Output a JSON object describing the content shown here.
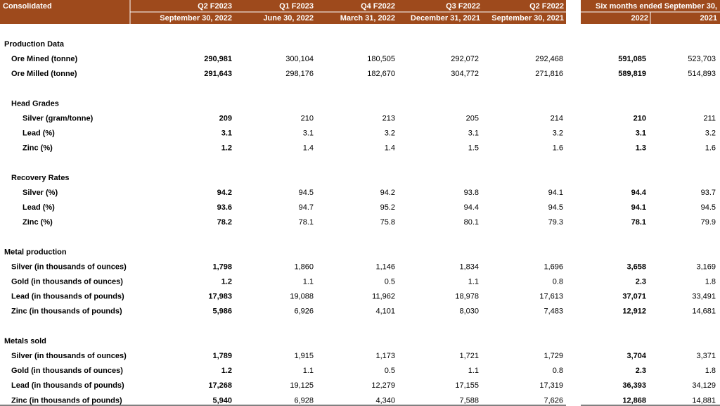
{
  "header": {
    "title": "Consolidated",
    "columns": [
      {
        "period": "Q2 F2023",
        "date": "September 30, 2022"
      },
      {
        "period": "Q1 F2023",
        "date": "June 30, 2022"
      },
      {
        "period": "Q4 F2022",
        "date": "March 31, 2022"
      },
      {
        "period": "Q3 F2022",
        "date": "December 31, 2021"
      },
      {
        "period": "Q2 F2022",
        "date": "September 30, 2021"
      }
    ],
    "six_months": {
      "title": "Six months ended September 30,",
      "years": [
        "2022",
        "2021"
      ]
    }
  },
  "sections": [
    {
      "title": "Production Data",
      "rows": [
        {
          "label": "Ore Mined (tonne)",
          "values": [
            "290,981",
            "300,104",
            "180,505",
            "292,072",
            "292,468",
            "591,085",
            "523,703"
          ]
        },
        {
          "label": "Ore Milled (tonne)",
          "values": [
            "291,643",
            "298,176",
            "182,670",
            "304,772",
            "271,816",
            "589,819",
            "514,893"
          ]
        }
      ]
    },
    {
      "title": "Head Grades",
      "rows": [
        {
          "label": "Silver (gram/tonne)",
          "values": [
            "209",
            "210",
            "213",
            "205",
            "214",
            "210",
            "211"
          ]
        },
        {
          "label": "Lead  (%)",
          "values": [
            "3.1",
            "3.1",
            "3.2",
            "3.1",
            "3.2",
            "3.1",
            "3.2"
          ]
        },
        {
          "label": "Zinc (%)",
          "values": [
            "1.2",
            "1.4",
            "1.4",
            "1.5",
            "1.6",
            "1.3",
            "1.6"
          ]
        }
      ]
    },
    {
      "title": "Recovery Rates",
      "rows": [
        {
          "label": "Silver  (%)",
          "values": [
            "94.2",
            "94.5",
            "94.2",
            "93.8",
            "94.1",
            "94.4",
            "93.7"
          ]
        },
        {
          "label": "Lead  (%)",
          "values": [
            "93.6",
            "94.7",
            "95.2",
            "94.4",
            "94.5",
            "94.1",
            "94.5"
          ]
        },
        {
          "label": "Zinc (%)",
          "values": [
            "78.2",
            "78.1",
            "75.8",
            "80.1",
            "79.3",
            "78.1",
            "79.9"
          ]
        }
      ]
    },
    {
      "title": "Metal production",
      "rows": [
        {
          "label": "Silver (in thousands of ounces)",
          "values": [
            "1,798",
            "1,860",
            "1,146",
            "1,834",
            "1,696",
            "3,658",
            "3,169"
          ]
        },
        {
          "label": "Gold (in thousands of ounces)",
          "values": [
            "1.2",
            "1.1",
            "0.5",
            "1.1",
            "0.8",
            "2.3",
            "1.8"
          ]
        },
        {
          "label": "Lead (in thousands of pounds)",
          "values": [
            "17,983",
            "19,088",
            "11,962",
            "18,978",
            "17,613",
            "37,071",
            "33,491"
          ]
        },
        {
          "label": "Zinc (in thousands of pounds)",
          "values": [
            "5,986",
            "6,926",
            "4,101",
            "8,030",
            "7,483",
            "12,912",
            "14,681"
          ]
        }
      ]
    },
    {
      "title": "Metals sold",
      "rows": [
        {
          "label": "Silver (in thousands of ounces)",
          "values": [
            "1,789",
            "1,915",
            "1,173",
            "1,721",
            "1,729",
            "3,704",
            "3,371"
          ]
        },
        {
          "label": "Gold  (in thousands of ounces)",
          "values": [
            "1.2",
            "1.1",
            "0.5",
            "1.1",
            "0.8",
            "2.3",
            "1.8"
          ]
        },
        {
          "label": "Lead (in thousands of pounds)",
          "values": [
            "17,268",
            "19,125",
            "12,279",
            "17,155",
            "17,319",
            "36,393",
            "34,129"
          ]
        },
        {
          "label": "Zinc  (in thousands of pounds)",
          "values": [
            "5,940",
            "6,928",
            "4,340",
            "7,588",
            "7,626",
            "12,868",
            "14,881"
          ]
        }
      ]
    }
  ]
}
